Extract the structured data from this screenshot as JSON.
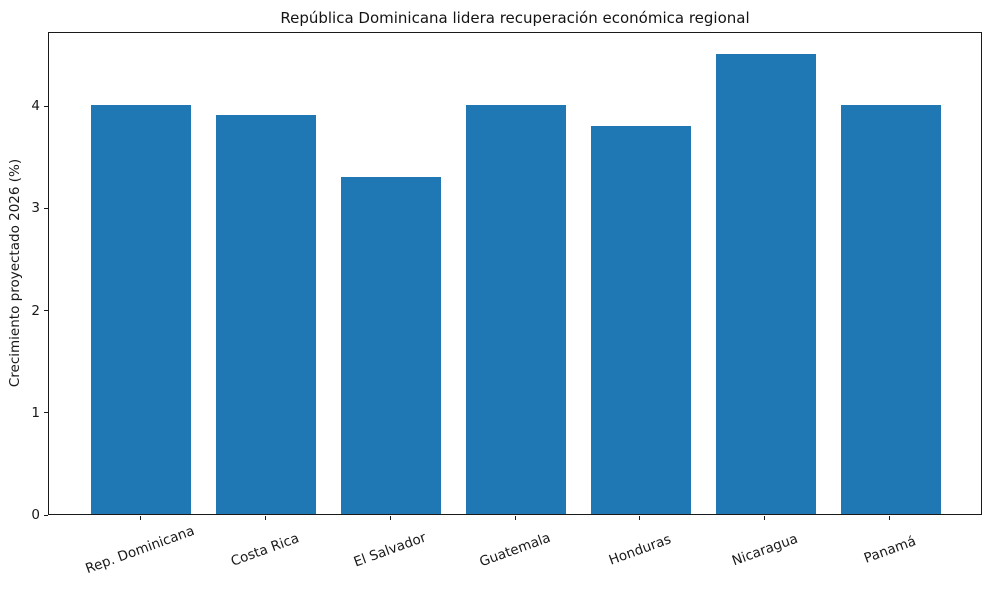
{
  "chart_data": {
    "type": "bar",
    "title": "República Dominicana lidera recuperación económica regional",
    "xlabel": "",
    "ylabel": "Crecimiento proyectado 2026 (%)",
    "categories": [
      "Rep. Dominicana",
      "Costa Rica",
      "El Salvador",
      "Guatemala",
      "Honduras",
      "Nicaragua",
      "Panamá"
    ],
    "values": [
      4.0,
      3.9,
      3.3,
      4.0,
      3.8,
      4.5,
      4.0
    ],
    "bar_color": "#1f77b4",
    "ylim": [
      0,
      4.725
    ],
    "yticks": [
      0,
      1,
      2,
      3,
      4
    ],
    "xlim": [
      -0.74,
      6.74
    ],
    "bar_width": 0.8,
    "xtick_rotation_deg": 20,
    "grid": false,
    "legend": "none",
    "frame": "full-box"
  }
}
